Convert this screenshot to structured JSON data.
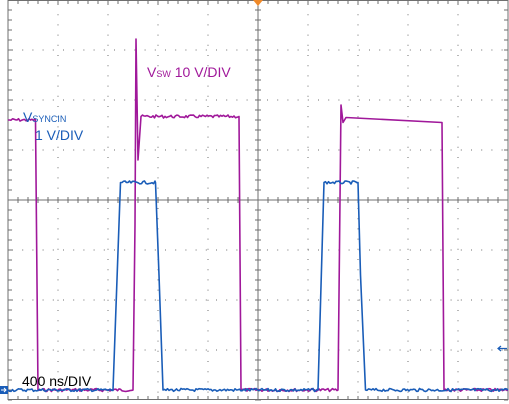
{
  "colors": {
    "grid": "#6f6f6f",
    "sw": "#a0189a",
    "sync": "#1a5db8",
    "marker": "#f08a2a",
    "background": "#ffffff"
  },
  "labels": {
    "vsw_main": "V",
    "vsw_sub": "SW",
    "vsw_scale": "10 V/DIV",
    "vsync_main": "V",
    "vsync_sub": "SYNCIN",
    "vsync_scale": "1 V/DIV",
    "timebase": "400 ns/DIV"
  },
  "chart_data": {
    "type": "line",
    "title": "",
    "xlabel": "",
    "ylabel": "",
    "grid": true,
    "divisions": {
      "x": 10,
      "y": 8
    },
    "xlim": [
      0,
      10
    ],
    "ylim": [
      0,
      8
    ],
    "series": [
      {
        "name": "VSW",
        "color": "#a0189a",
        "x": [
          0,
          0.55,
          0.6,
          2.5,
          2.54,
          2.56,
          2.6,
          2.66,
          4.62,
          4.66,
          6.6,
          6.66,
          6.7,
          6.76,
          8.68,
          8.72,
          10.0
        ],
        "y": [
          5.6,
          5.6,
          0.2,
          0.2,
          3.5,
          7.22,
          4.8,
          5.67,
          5.67,
          0.2,
          0.2,
          5.9,
          5.55,
          5.65,
          5.55,
          0.2,
          0.2
        ]
      },
      {
        "name": "VSYNCIN",
        "color": "#1a5db8",
        "x": [
          0,
          2.1,
          2.25,
          2.95,
          3.02,
          3.1,
          6.2,
          6.32,
          7.0,
          7.05,
          7.15,
          10.0
        ],
        "y": [
          0.2,
          0.2,
          4.35,
          4.35,
          2.5,
          0.2,
          0.2,
          4.35,
          4.35,
          2.5,
          0.2,
          0.2
        ]
      }
    ]
  }
}
